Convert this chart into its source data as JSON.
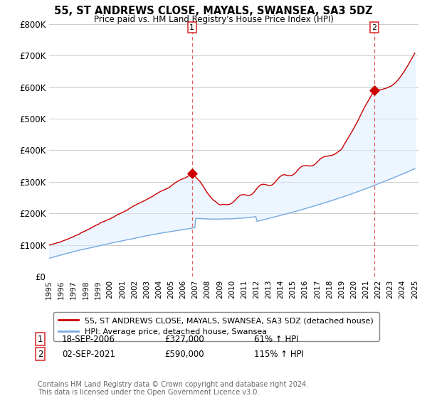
{
  "title": "55, ST ANDREWS CLOSE, MAYALS, SWANSEA, SA3 5DZ",
  "subtitle": "Price paid vs. HM Land Registry's House Price Index (HPI)",
  "ylim": [
    0,
    800000
  ],
  "yticks": [
    0,
    100000,
    200000,
    300000,
    400000,
    500000,
    600000,
    700000,
    800000
  ],
  "ytick_labels": [
    "£0",
    "£100K",
    "£200K",
    "£300K",
    "£400K",
    "£500K",
    "£600K",
    "£700K",
    "£800K"
  ],
  "sale1_year": 2006.72,
  "sale1_price": 327000,
  "sale2_year": 2021.67,
  "sale2_price": 590000,
  "legend_line1": "55, ST ANDREWS CLOSE, MAYALS, SWANSEA, SA3 5DZ (detached house)",
  "legend_line2": "HPI: Average price, detached house, Swansea",
  "annotation1_date": "18-SEP-2006",
  "annotation1_price": "£327,000",
  "annotation1_hpi": "61% ↑ HPI",
  "annotation2_date": "02-SEP-2021",
  "annotation2_price": "£590,000",
  "annotation2_hpi": "115% ↑ HPI",
  "footer": "Contains HM Land Registry data © Crown copyright and database right 2024.\nThis data is licensed under the Open Government Licence v3.0.",
  "line_color_red": "#cc0000",
  "line_color_blue": "#7aaadd",
  "fill_color_blue": "#ddeeff",
  "vline_color": "#dd4444",
  "background_color": "#ffffff",
  "grid_color": "#cccccc"
}
